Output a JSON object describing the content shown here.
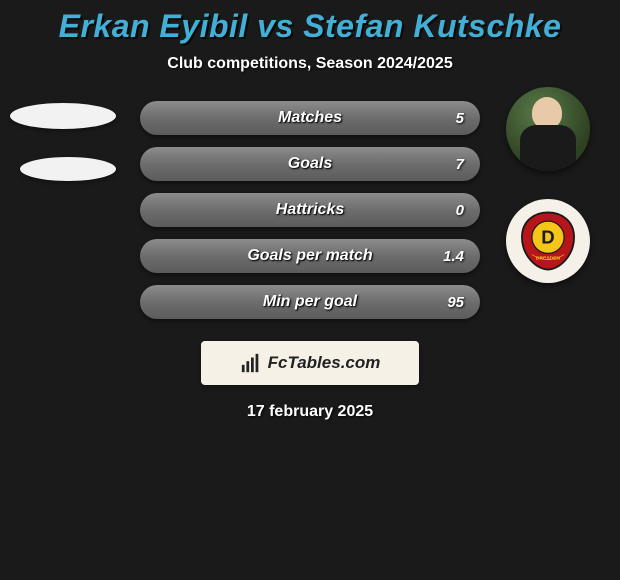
{
  "title": "Erkan Eyibil vs Stefan Kutschke",
  "subtitle": "Club competitions, Season 2024/2025",
  "date": "17 february 2025",
  "branding": {
    "text": "FcTables.com",
    "icon_name": "bar-chart-icon",
    "bg_color": "#f5f1e6",
    "text_color": "#222222"
  },
  "colors": {
    "page_bg": "#1a1a1a",
    "title_color": "#42b0d6",
    "pill_gradient_top": "#8c8c8c",
    "pill_gradient_bottom": "#5c5c5c",
    "text_white": "#ffffff",
    "ellipse_color": "#f2f2f2",
    "avatar_club_bg": "#f5f1e8",
    "club_red": "#b8151b",
    "club_yellow": "#f5c518",
    "club_black": "#1a1a1a"
  },
  "typography": {
    "title_fontsize": 32,
    "subtitle_fontsize": 16,
    "stat_label_fontsize": 16,
    "stat_value_fontsize": 15,
    "date_fontsize": 16,
    "font_style": "italic",
    "font_weight": 800
  },
  "layout": {
    "pill_width": 340,
    "pill_height": 34,
    "pill_radius": 17,
    "avatar_diameter": 84,
    "branding_width": 218,
    "branding_height": 44
  },
  "stats": [
    {
      "label": "Matches",
      "right_value": "5"
    },
    {
      "label": "Goals",
      "right_value": "7"
    },
    {
      "label": "Hattricks",
      "right_value": "0"
    },
    {
      "label": "Goals per match",
      "right_value": "1.4"
    },
    {
      "label": "Min per goal",
      "right_value": "95"
    }
  ],
  "club": {
    "name": "Dynamo Dresden",
    "badge_text": "DRESDEN",
    "badge_letter": "D"
  }
}
